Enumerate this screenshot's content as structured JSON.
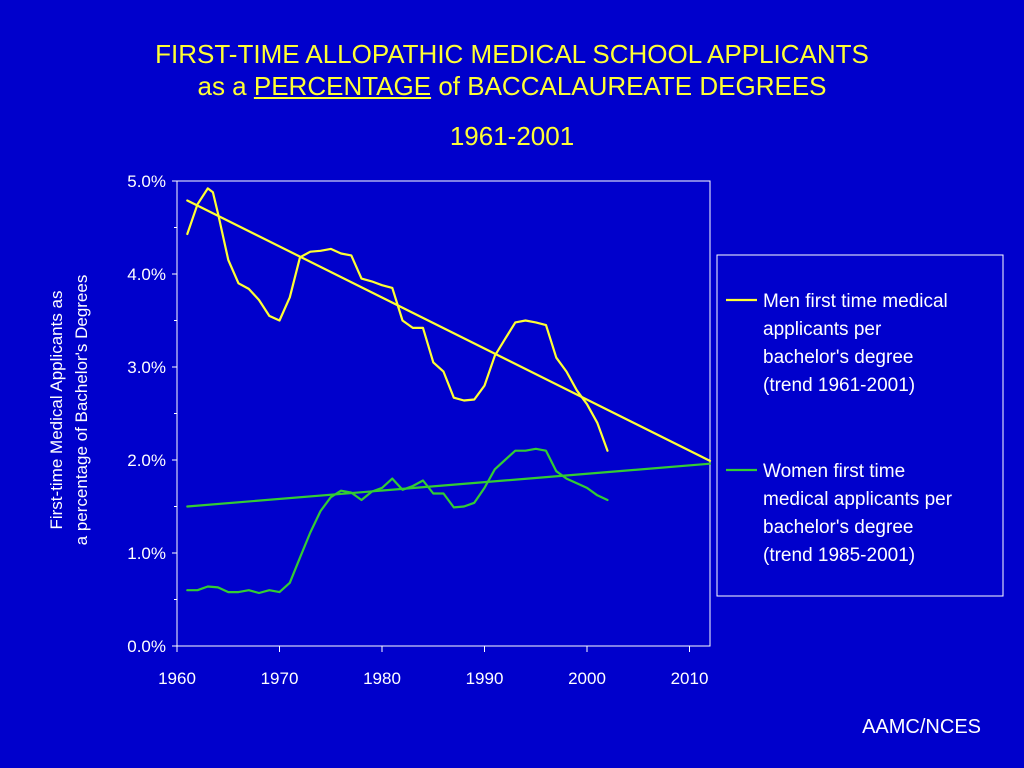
{
  "slide": {
    "title_line1": "FIRST-TIME ALLOPATHIC MEDICAL SCHOOL APPLICANTS",
    "title_line2_prefix": "as a",
    "title_line2_underlined": "PERCENTAGE",
    "title_line2_suffix": "of BACCALAUREATE DEGREES",
    "subtitle": "1961-2001",
    "source": "AAMC/NCES",
    "colors": {
      "background": "#0000cc",
      "title": "#ffff33",
      "text": "#ffffff",
      "men": "#ffff33",
      "women": "#33cc33"
    }
  },
  "chart_data": {
    "type": "line",
    "ylabel_line1": "First-time Medical Applicants as",
    "ylabel_line2": "a percentage of Bachelor's Degrees",
    "xlim": [
      1960,
      2012
    ],
    "ylim": [
      0,
      5.0
    ],
    "x_ticks": [
      "1960",
      "1970",
      "1980",
      "1990",
      "2000",
      "2010"
    ],
    "y_ticks": [
      "0.0%",
      "1.0%",
      "2.0%",
      "3.0%",
      "4.0%",
      "5.0%"
    ],
    "legend_position": "right",
    "legend": [
      [
        "Men first time medical",
        "applicants per",
        "bachelor's degree",
        "(trend 1961-2001)"
      ],
      [
        "Women first time",
        "medical applicants per",
        "bachelor's degree",
        "(trend 1985-2001)"
      ]
    ],
    "series": [
      {
        "kind": "actual",
        "color": "#ffff33",
        "x": [
          1961,
          1962,
          1963,
          1963.5,
          1964,
          1965,
          1966,
          1967,
          1968,
          1969,
          1970,
          1971,
          1972,
          1973,
          1974,
          1975,
          1976,
          1977,
          1978,
          1979,
          1980,
          1981,
          1982,
          1983,
          1984,
          1985,
          1986,
          1987,
          1988,
          1989,
          1990,
          1991,
          1992,
          1993,
          1994,
          1995,
          1996,
          1997,
          1998,
          1999,
          2000,
          2001,
          2002
        ],
        "y": [
          4.43,
          4.75,
          4.92,
          4.88,
          4.65,
          4.15,
          3.9,
          3.84,
          3.72,
          3.55,
          3.5,
          3.75,
          4.18,
          4.24,
          4.25,
          4.27,
          4.22,
          4.2,
          3.95,
          3.92,
          3.88,
          3.85,
          3.5,
          3.42,
          3.42,
          3.05,
          2.95,
          2.67,
          2.64,
          2.65,
          2.8,
          3.12,
          3.3,
          3.48,
          3.5,
          3.48,
          3.45,
          3.1,
          2.95,
          2.75,
          2.6,
          2.4,
          2.1
        ]
      },
      {
        "kind": "trend",
        "color": "#ffff33",
        "x": [
          1961,
          2012
        ],
        "y": [
          4.79,
          1.99
        ]
      },
      {
        "kind": "actual",
        "color": "#33cc33",
        "x": [
          1961,
          1962,
          1963,
          1964,
          1965,
          1966,
          1967,
          1968,
          1969,
          1970,
          1971,
          1972,
          1973,
          1974,
          1975,
          1976,
          1977,
          1978,
          1979,
          1980,
          1981,
          1982,
          1983,
          1984,
          1985,
          1986,
          1987,
          1988,
          1989,
          1990,
          1991,
          1992,
          1993,
          1994,
          1995,
          1996,
          1997,
          1998,
          1999,
          2000,
          2001,
          2002
        ],
        "y": [
          0.6,
          0.6,
          0.64,
          0.63,
          0.58,
          0.58,
          0.6,
          0.57,
          0.6,
          0.58,
          0.68,
          0.95,
          1.22,
          1.45,
          1.6,
          1.67,
          1.65,
          1.57,
          1.66,
          1.7,
          1.8,
          1.68,
          1.72,
          1.78,
          1.64,
          1.64,
          1.49,
          1.5,
          1.54,
          1.7,
          1.9,
          2.0,
          2.1,
          2.1,
          2.12,
          2.1,
          1.88,
          1.8,
          1.75,
          1.7,
          1.62,
          1.57
        ]
      },
      {
        "kind": "trend",
        "color": "#33cc33",
        "x": [
          1961,
          2012
        ],
        "y": [
          1.5,
          1.96
        ]
      }
    ]
  }
}
